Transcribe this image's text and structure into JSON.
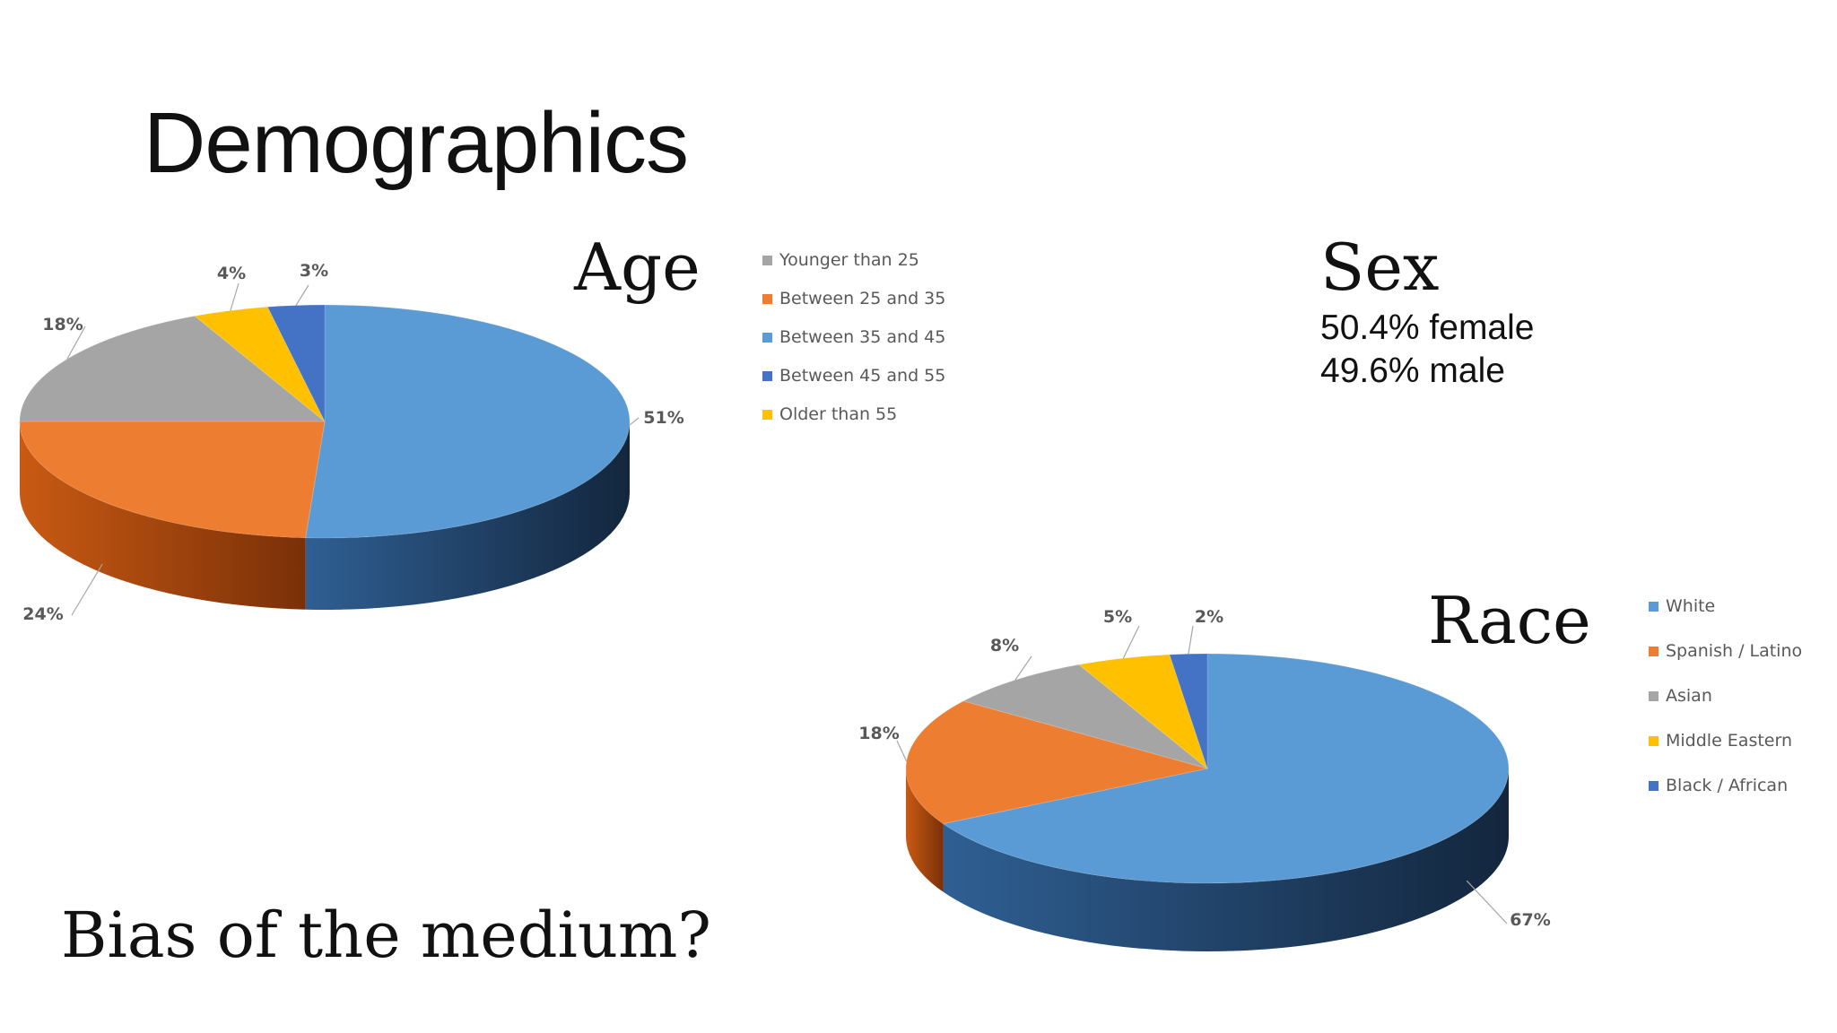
{
  "slide": {
    "title": "Demographics",
    "question": "Bias of the medium?",
    "sex": {
      "heading": "Sex",
      "lines": [
        "50.4% female",
        "49.6% male"
      ]
    }
  },
  "chart_data": [
    {
      "type": "pie",
      "title": "Age",
      "categories": [
        "Between 35 and 45",
        "Between 25 and 35",
        "Younger than 25",
        "Older than 55",
        "Between 45 and 55"
      ],
      "values": [
        51,
        24,
        18,
        4,
        3
      ],
      "labels": [
        "51%",
        "24%",
        "18%",
        "4%",
        "3%"
      ],
      "legend": [
        "Younger than 25",
        "Between 25 and 35",
        "Between 35 and 45",
        "Between 45 and 55",
        "Older than 55"
      ],
      "legend_colors": [
        "#a5a5a5",
        "#ed7d31",
        "#5b9bd5",
        "#4472c4",
        "#ffc000"
      ],
      "colors": [
        "#5b9bd5",
        "#ed7d31",
        "#a5a5a5",
        "#ffc000",
        "#4472c4"
      ],
      "legend_placement": "right",
      "style": "3d"
    },
    {
      "type": "pie",
      "title": "Race",
      "categories": [
        "White",
        "Spanish / Latino",
        "Asian",
        "Middle Eastern",
        "Black / African"
      ],
      "values": [
        67,
        18,
        8,
        5,
        2
      ],
      "labels": [
        "67%",
        "18%",
        "8%",
        "5%",
        "2%"
      ],
      "legend": [
        "White",
        "Spanish / Latino",
        "Asian",
        "Middle Eastern",
        "Black / African"
      ],
      "legend_colors": [
        "#5b9bd5",
        "#ed7d31",
        "#a5a5a5",
        "#ffc000",
        "#4472c4"
      ],
      "colors": [
        "#5b9bd5",
        "#ed7d31",
        "#a5a5a5",
        "#ffc000",
        "#4472c4"
      ],
      "legend_placement": "right",
      "style": "3d"
    }
  ]
}
